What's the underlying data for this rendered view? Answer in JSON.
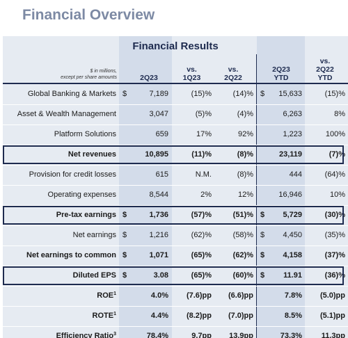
{
  "page_title": "Financial Overview",
  "section_title": "Financial Results",
  "header": {
    "note_line1": "$ in millions,",
    "note_line2": "except per share amounts",
    "col_2q23": "2Q23",
    "col_vs1q23_a": "vs.",
    "col_vs1q23_b": "1Q23",
    "col_vs2q22_a": "vs.",
    "col_vs2q22_b": "2Q22",
    "col_ytd_a": "2Q23",
    "col_ytd_b": "YTD",
    "col_vsytd_a": "vs.",
    "col_vsytd_b": "2Q22",
    "col_vsytd_c": "YTD"
  },
  "rows": [
    {
      "label": "Global Banking & Markets",
      "sup": "",
      "dol1": "$",
      "v2q23": "7,189",
      "vs1q23": "(15)%",
      "vs2q22": "(14)%",
      "dol2": "$",
      "vytd": "15,633",
      "vsytd": "(15)%"
    },
    {
      "label": "Asset & Wealth Management",
      "sup": "",
      "dol1": "",
      "v2q23": "3,047",
      "vs1q23": "(5)%",
      "vs2q22": "(4)%",
      "dol2": "",
      "vytd": "6,263",
      "vsytd": "8%"
    },
    {
      "label": "Platform Solutions",
      "sup": "",
      "dol1": "",
      "v2q23": "659",
      "vs1q23": "17%",
      "vs2q22": "92%",
      "dol2": "",
      "vytd": "1,223",
      "vsytd": "100%"
    },
    {
      "label": "Net revenues",
      "sup": "",
      "dol1": "",
      "v2q23": "10,895",
      "vs1q23": "(11)%",
      "vs2q22": "(8)%",
      "dol2": "",
      "vytd": "23,119",
      "vsytd": "(7)%"
    },
    {
      "label": "Provision for credit losses",
      "sup": "",
      "dol1": "",
      "v2q23": "615",
      "vs1q23": "N.M.",
      "vs2q22": "(8)%",
      "dol2": "",
      "vytd": "444",
      "vsytd": "(64)%"
    },
    {
      "label": "Operating expenses",
      "sup": "",
      "dol1": "",
      "v2q23": "8,544",
      "vs1q23": "2%",
      "vs2q22": "12%",
      "dol2": "",
      "vytd": "16,946",
      "vsytd": "10%"
    },
    {
      "label": "Pre-tax earnings",
      "sup": "",
      "dol1": "$",
      "v2q23": "1,736",
      "vs1q23": "(57)%",
      "vs2q22": "(51)%",
      "dol2": "$",
      "vytd": "5,729",
      "vsytd": "(30)%"
    },
    {
      "label": "Net earnings",
      "sup": "",
      "dol1": "$",
      "v2q23": "1,216",
      "vs1q23": "(62)%",
      "vs2q22": "(58)%",
      "dol2": "$",
      "vytd": "4,450",
      "vsytd": "(35)%"
    },
    {
      "label": "Net earnings to common",
      "sup": "",
      "dol1": "$",
      "v2q23": "1,071",
      "vs1q23": "(65)%",
      "vs2q22": "(62)%",
      "dol2": "$",
      "vytd": "4,158",
      "vsytd": "(37)%"
    },
    {
      "label": "Diluted EPS",
      "sup": "",
      "dol1": "$",
      "v2q23": "3.08",
      "vs1q23": "(65)%",
      "vs2q22": "(60)%",
      "dol2": "$",
      "vytd": "11.91",
      "vsytd": "(36)%"
    },
    {
      "label": "ROE",
      "sup": "1",
      "dol1": "",
      "v2q23": "4.0%",
      "vs1q23": "(7.6)pp",
      "vs2q22": "(6.6)pp",
      "dol2": "",
      "vytd": "7.8%",
      "vsytd": "(5.0)pp"
    },
    {
      "label": "ROTE",
      "sup": "1",
      "dol1": "",
      "v2q23": "4.4%",
      "vs1q23": "(8.2)pp",
      "vs2q22": "(7.0)pp",
      "dol2": "",
      "vytd": "8.5%",
      "vsytd": "(5.1)pp"
    },
    {
      "label": "Efficiency Ratio",
      "sup": "3",
      "dol1": "",
      "v2q23": "78.4%",
      "vs1q23": "9.7pp",
      "vs2q22": "13.9pp",
      "dol2": "",
      "vytd": "73.3%",
      "vsytd": "11.3pp"
    }
  ]
}
